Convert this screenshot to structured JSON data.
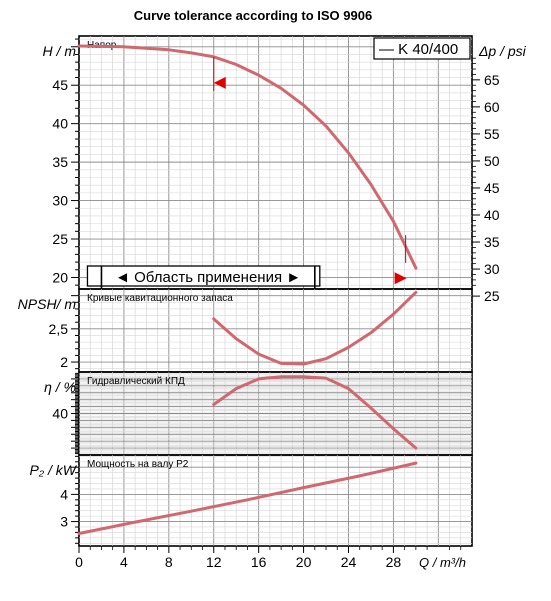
{
  "title": "Curve tolerance according to ISO 9906",
  "legend": {
    "label": "— K 40/400",
    "color": "#c8505a"
  },
  "curve_color": "#d06870",
  "area_label": "◄ Область применения ►",
  "x_axis": {
    "label": "Q / m³/h",
    "ticks": [
      0,
      4,
      8,
      12,
      16,
      20,
      24,
      28
    ],
    "range": [
      0,
      35
    ]
  },
  "chart_data": [
    {
      "type": "line",
      "panel_label": "Напор",
      "ylabel": "H / m",
      "ylim": [
        18.5,
        51.4
      ],
      "yticks": [
        20,
        25,
        30,
        35,
        40,
        45
      ],
      "right_axis": {
        "label": "Δp / psi",
        "ticks": [
          25,
          30,
          35,
          40,
          45,
          50,
          55,
          60,
          65
        ]
      },
      "x": [
        0,
        4,
        8,
        10,
        12,
        14,
        16,
        18,
        20,
        22,
        24,
        26,
        28,
        29,
        30
      ],
      "values": [
        50.1,
        50.0,
        49.6,
        49.2,
        48.7,
        47.7,
        46.3,
        44.6,
        42.4,
        39.7,
        36.2,
        32.1,
        27.3,
        24.3,
        21.2
      ],
      "tolerance_markers": [
        {
          "x": 12,
          "y": 45.3
        },
        {
          "x": 29,
          "y": 19.9
        }
      ],
      "application_range": [
        2,
        21
      ]
    },
    {
      "type": "line",
      "panel_label": "Кривые кавитационного запаса",
      "ylabel": "NPSH/ m",
      "ylim": [
        1.85,
        3.1
      ],
      "yticks": [
        2,
        2.5
      ],
      "x": [
        12,
        14,
        16,
        18,
        20,
        22,
        24,
        26,
        28,
        30
      ],
      "values": [
        2.65,
        2.35,
        2.12,
        1.98,
        1.97,
        2.05,
        2.22,
        2.44,
        2.72,
        3.05
      ]
    },
    {
      "type": "line",
      "panel_label": "Гидравлический КПД",
      "ylabel": "η / %",
      "ylim": [
        34,
        46
      ],
      "yticks": [
        40
      ],
      "x": [
        12,
        14,
        16,
        18,
        20,
        22,
        24,
        26,
        28,
        30
      ],
      "values": [
        41.3,
        43.6,
        45.0,
        45.3,
        45.3,
        45.1,
        43.6,
        40.8,
        37.8,
        35.0
      ]
    },
    {
      "type": "line",
      "panel_label": "Мощность на валу P2",
      "ylabel": "P₂ / kW",
      "ylim": [
        2.1,
        5.45
      ],
      "yticks": [
        3,
        4
      ],
      "x": [
        0,
        5,
        10,
        15,
        20,
        25,
        30
      ],
      "values": [
        2.56,
        2.98,
        3.38,
        3.8,
        4.25,
        4.68,
        5.15
      ]
    }
  ]
}
